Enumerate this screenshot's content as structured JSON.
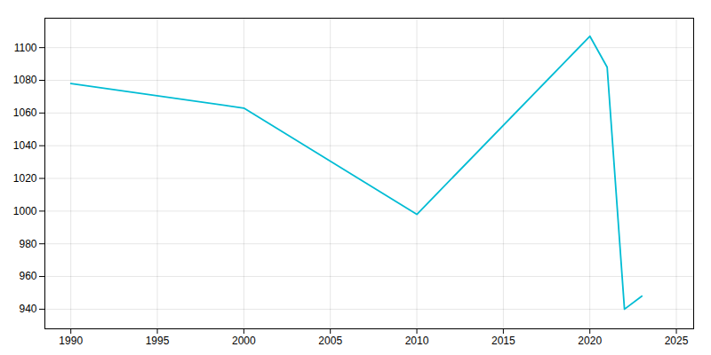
{
  "chart_data": {
    "type": "line",
    "x": [
      1990,
      2000,
      2010,
      2020,
      2021,
      2022,
      2023
    ],
    "values": [
      1078,
      1063,
      998,
      1107,
      1088,
      940,
      948
    ],
    "color": "#00bcd4",
    "xlim": [
      1988.5,
      2026
    ],
    "ylim": [
      928,
      1118
    ],
    "xticks": [
      1990,
      1995,
      2000,
      2005,
      2010,
      2015,
      2020,
      2025
    ],
    "yticks": [
      940,
      960,
      980,
      1000,
      1020,
      1040,
      1060,
      1080,
      1100
    ],
    "grid": true
  }
}
